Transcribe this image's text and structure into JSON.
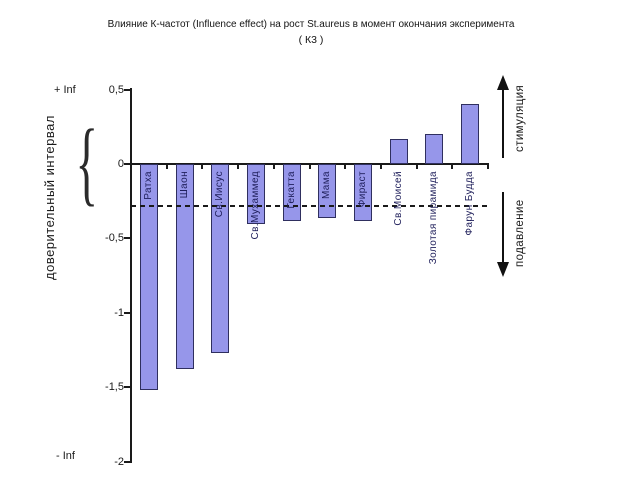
{
  "title": {
    "line1": "Влияние К-частот (Influence effect) на рост St.aureus в момент окончания эксперимента",
    "line2": "( К3 )"
  },
  "y_axis": {
    "title": "доверительный интервал",
    "tick_labels": [
      "0,5",
      "0",
      "-0,5",
      "-1",
      "-1,5",
      "-2"
    ],
    "plus_inf_label": "+ Inf",
    "minus_inf_label": "- Inf"
  },
  "right_annotations": {
    "up_label": "стимуляция",
    "down_label": "подавление"
  },
  "colors": {
    "bar_fill": "#9696EA",
    "bar_border": "#2F2F5F",
    "axis": "#1A1A1A"
  },
  "chart_data": {
    "type": "bar",
    "title": "Влияние К-частот (Influence effect) на рост St.aureus в момент окончания эксперимента ( К3 )",
    "categories": [
      "Ратха",
      "Шаон",
      "Св.Иисус",
      "Св.Мухаммед",
      "Гекатта",
      "Мама",
      "Фираст",
      "Св.Моисей",
      "Золотая пирамида",
      "Фарун Будда"
    ],
    "values": [
      -1.52,
      -1.38,
      -1.27,
      -0.4,
      -0.38,
      -0.36,
      -0.38,
      0.17,
      0.2,
      0.4
    ],
    "ylabel": "доверительный интервал",
    "ylim": [
      -2,
      0.5
    ],
    "y_ticks": [
      0.5,
      0,
      -0.5,
      -1,
      -1.5,
      -2
    ],
    "y_axis_endpoints": {
      "top": "+ Inf",
      "bottom": "- Inf"
    },
    "reference_line": {
      "value": -0.28,
      "style": "dashed"
    },
    "annotations": [
      {
        "text": "стимуляция",
        "direction": "up"
      },
      {
        "text": "подавление",
        "direction": "down"
      }
    ],
    "grid": false,
    "legend": false
  }
}
